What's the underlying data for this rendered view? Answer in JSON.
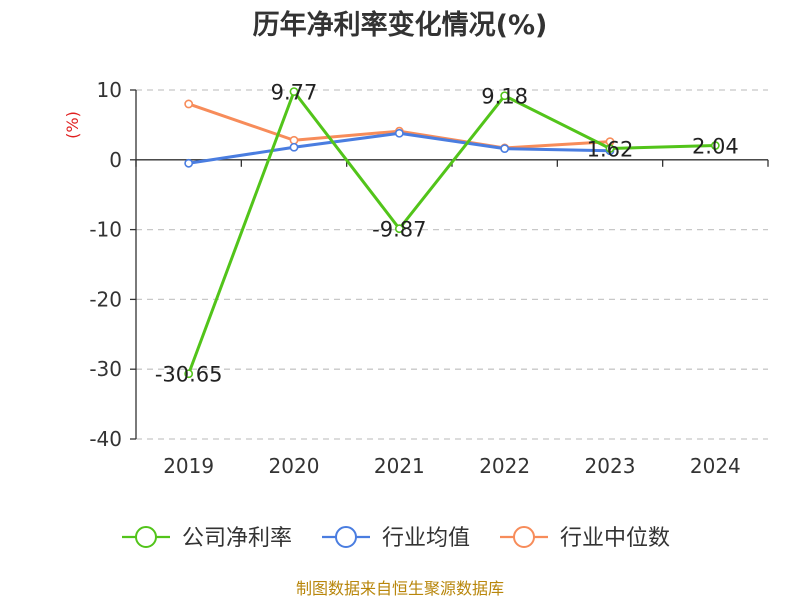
{
  "chart_data": {
    "type": "line",
    "title": "历年净利率变化情况(%)",
    "ylabel": "(%)",
    "categories": [
      "2019",
      "2020",
      "2021",
      "2022",
      "2023",
      "2024"
    ],
    "ylim": [
      -40,
      10
    ],
    "yticks": [
      10,
      0,
      -10,
      -20,
      -30,
      -40
    ],
    "grid": true,
    "legend_position": "bottom",
    "series": [
      {
        "name": "公司净利率",
        "color": "#52c41a",
        "values": [
          -30.65,
          9.77,
          -9.87,
          9.18,
          1.62,
          2.04
        ],
        "labels": [
          "-30.65",
          "9.77",
          "-9.87",
          "9.18",
          "1.62",
          "2.04"
        ]
      },
      {
        "name": "行业均值",
        "color": "#4a7de0",
        "values": [
          -0.5,
          1.8,
          3.8,
          1.6,
          1.3,
          null
        ]
      },
      {
        "name": "行业中位数",
        "color": "#f78c5a",
        "values": [
          8.0,
          2.8,
          4.1,
          1.7,
          2.6,
          null
        ]
      }
    ]
  },
  "source": "制图数据来自恒生聚源数据库"
}
